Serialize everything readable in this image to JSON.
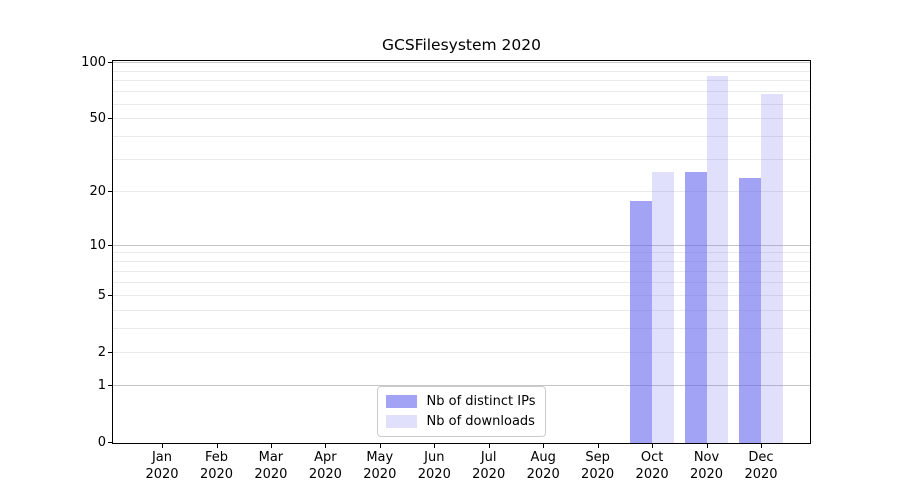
{
  "title": "GCSFilesystem 2020",
  "chart_data": {
    "type": "bar",
    "title": "GCSFilesystem 2020",
    "xlabel": "",
    "ylabel": "",
    "x_year_line": "2020",
    "categories": [
      "Jan",
      "Feb",
      "Mar",
      "Apr",
      "May",
      "Jun",
      "Jul",
      "Aug",
      "Sep",
      "Oct",
      "Nov",
      "Dec"
    ],
    "series": [
      {
        "key": "distinct-ips",
        "name": "Nb of distinct IPs",
        "color": "rgba(102,102,240,0.6)",
        "color_hex_on_white": "#a3a3f6",
        "values": [
          0,
          0,
          0,
          0,
          0,
          0,
          0,
          0,
          0,
          18,
          26,
          24
        ]
      },
      {
        "key": "downloads",
        "name": "Nb of downloads",
        "color": "rgba(102,102,240,0.2)",
        "color_hex_on_white": "#e0e0fc",
        "values": [
          0,
          0,
          0,
          0,
          0,
          0,
          0,
          0,
          0,
          26,
          85,
          68
        ]
      }
    ],
    "yscale": "log1p",
    "ylim": [
      0,
      102
    ],
    "yticks": [
      0,
      1,
      2,
      5,
      10,
      20,
      50,
      100
    ],
    "major_gridlines": [
      1,
      10,
      100
    ],
    "minor_gridlines": [
      2,
      3,
      4,
      5,
      6,
      7,
      8,
      9,
      20,
      30,
      40,
      50,
      60,
      70,
      80,
      90
    ],
    "grid": "horizontal",
    "grid_color_major": "#c6c6c6",
    "grid_color_minor": "#eaeaea",
    "spine_color": "#000000",
    "legend": {
      "position": "lower center",
      "labels": [
        "Nb of distinct IPs",
        "Nb of downloads"
      ]
    }
  }
}
